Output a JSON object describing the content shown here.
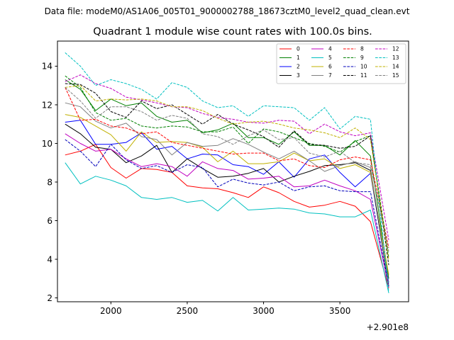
{
  "header": {
    "data_file": "Data file: modeM0/AS1A06_005T01_9000002788_18673cztM0_level2_quad_clean.evt"
  },
  "chart_data": {
    "type": "line",
    "title": "Quadrant 1 module wise count rates with 100.0s bins.",
    "xlabel": "",
    "ylabel": "",
    "x_offset_label": "+2.901e8",
    "xlim": [
      1650,
      3950
    ],
    "ylim": [
      1.8,
      15.3
    ],
    "xticks": [
      2000,
      2500,
      3000,
      3500
    ],
    "yticks": [
      2,
      4,
      6,
      8,
      10,
      12,
      14
    ],
    "legend_position": "top-right",
    "x": [
      1700,
      1800,
      1900,
      2000,
      2100,
      2200,
      2300,
      2400,
      2500,
      2600,
      2700,
      2800,
      2900,
      3000,
      3100,
      3200,
      3300,
      3400,
      3500,
      3600,
      3700,
      3820
    ],
    "series": [
      {
        "name": "0",
        "color": "#ff0000",
        "dash": "solid",
        "values": [
          9.4,
          9.6,
          9.95,
          8.75,
          8.2,
          8.7,
          8.65,
          8.5,
          7.8,
          7.7,
          7.65,
          7.45,
          7.2,
          7.75,
          7.45,
          7.0,
          6.7,
          6.8,
          7.0,
          6.75,
          5.95,
          2.5
        ]
      },
      {
        "name": "1",
        "color": "#008000",
        "dash": "solid",
        "values": [
          13.3,
          12.8,
          11.7,
          12.3,
          11.95,
          12.1,
          11.4,
          11.1,
          11.2,
          10.55,
          10.7,
          11.05,
          10.3,
          10.3,
          9.95,
          10.6,
          9.9,
          9.9,
          9.4,
          10.15,
          9.35,
          3.0
        ]
      },
      {
        "name": "2",
        "color": "#0000ff",
        "dash": "solid",
        "values": [
          11.1,
          11.2,
          9.95,
          9.95,
          10.05,
          10.55,
          9.7,
          9.85,
          9.2,
          9.45,
          9.4,
          8.9,
          8.8,
          8.4,
          9.05,
          8.25,
          9.2,
          9.4,
          8.5,
          7.75,
          8.45,
          2.8
        ]
      },
      {
        "name": "3",
        "color": "#000000",
        "dash": "solid",
        "values": [
          11.0,
          10.5,
          9.8,
          9.7,
          9.0,
          9.35,
          9.9,
          8.5,
          9.2,
          8.7,
          8.25,
          8.3,
          8.45,
          8.7,
          8.0,
          8.3,
          8.55,
          8.85,
          8.9,
          9.0,
          8.6,
          2.6
        ]
      },
      {
        "name": "4",
        "color": "#c000c0",
        "dash": "solid",
        "values": [
          10.5,
          10.0,
          9.6,
          9.7,
          9.2,
          8.8,
          8.95,
          8.8,
          8.3,
          9.05,
          8.7,
          8.6,
          8.15,
          8.2,
          8.3,
          7.75,
          7.8,
          8.1,
          7.8,
          7.55,
          7.1,
          2.55
        ]
      },
      {
        "name": "5",
        "color": "#00c0c0",
        "dash": "solid",
        "values": [
          9.0,
          7.9,
          8.3,
          8.1,
          7.8,
          7.2,
          7.1,
          7.2,
          6.95,
          7.05,
          6.5,
          7.2,
          6.55,
          6.6,
          6.65,
          6.6,
          6.4,
          6.35,
          6.2,
          6.2,
          6.55,
          2.25
        ]
      },
      {
        "name": "6",
        "color": "#c0b000",
        "dash": "solid",
        "values": [
          11.5,
          11.35,
          10.9,
          10.45,
          9.6,
          10.6,
          10.05,
          10.1,
          10.05,
          9.8,
          9.05,
          9.6,
          8.95,
          8.95,
          9.05,
          9.5,
          9.1,
          9.2,
          8.7,
          8.9,
          8.5,
          3.2
        ]
      },
      {
        "name": "7",
        "color": "#808080",
        "dash": "solid",
        "values": [
          12.1,
          11.9,
          11.15,
          10.8,
          11.05,
          10.35,
          10.2,
          9.4,
          10.05,
          9.85,
          9.9,
          10.25,
          9.95,
          9.55,
          9.2,
          9.6,
          9.1,
          8.55,
          8.85,
          9.05,
          8.75,
          2.7
        ]
      },
      {
        "name": "8",
        "color": "#ff0000",
        "dash": "dashed",
        "values": [
          12.9,
          11.2,
          11.25,
          10.9,
          10.8,
          10.5,
          10.6,
          10.05,
          9.9,
          9.75,
          9.6,
          9.45,
          9.5,
          9.5,
          9.1,
          9.2,
          8.85,
          8.75,
          9.15,
          9.3,
          9.15,
          4.6
        ]
      },
      {
        "name": "9",
        "color": "#008000",
        "dash": "dashed",
        "values": [
          13.5,
          12.9,
          11.6,
          11.2,
          11.3,
          10.9,
          10.8,
          10.9,
          10.85,
          10.6,
          10.6,
          10.85,
          10.0,
          10.75,
          10.6,
          10.3,
          10.0,
          9.85,
          9.55,
          10.1,
          10.4,
          4.1
        ]
      },
      {
        "name": "10",
        "color": "#0000bb",
        "dash": "dashed",
        "values": [
          10.2,
          9.6,
          8.8,
          9.95,
          9.15,
          8.7,
          8.85,
          8.5,
          8.9,
          8.75,
          7.75,
          8.15,
          7.95,
          7.85,
          8.0,
          7.55,
          7.75,
          7.8,
          7.55,
          7.5,
          7.5,
          2.6
        ]
      },
      {
        "name": "11",
        "color": "#000000",
        "dash": "dashed",
        "values": [
          13.1,
          13.05,
          12.6,
          11.65,
          11.35,
          12.2,
          11.8,
          12.0,
          11.5,
          11.0,
          11.5,
          11.0,
          10.7,
          10.35,
          9.8,
          10.65,
          9.95,
          9.9,
          9.75,
          9.85,
          10.4,
          3.7
        ]
      },
      {
        "name": "12",
        "color": "#c000c0",
        "dash": "dashed",
        "values": [
          13.2,
          13.55,
          13.1,
          12.85,
          12.4,
          12.25,
          12.1,
          11.9,
          11.85,
          11.55,
          11.35,
          11.25,
          11.1,
          11.05,
          11.2,
          11.15,
          10.5,
          11.0,
          10.6,
          10.4,
          10.55,
          5.0
        ]
      },
      {
        "name": "13",
        "color": "#00c0c0",
        "dash": "dashed",
        "values": [
          14.7,
          14.0,
          13.0,
          13.3,
          13.1,
          12.8,
          12.3,
          13.15,
          12.9,
          12.2,
          11.85,
          11.95,
          11.4,
          11.95,
          11.9,
          11.85,
          11.2,
          11.85,
          10.75,
          11.4,
          11.25,
          2.3
        ]
      },
      {
        "name": "14",
        "color": "#c0b000",
        "dash": "dashed",
        "values": [
          12.9,
          13.0,
          12.2,
          12.3,
          12.25,
          12.3,
          12.2,
          11.9,
          11.9,
          11.7,
          11.3,
          11.0,
          11.1,
          11.15,
          11.0,
          10.8,
          10.7,
          10.55,
          10.3,
          10.8,
          10.2,
          4.0
        ]
      },
      {
        "name": "15",
        "color": "#808080",
        "dash": "dashed",
        "values": [
          12.9,
          12.2,
          11.3,
          11.9,
          11.9,
          11.65,
          11.2,
          11.45,
          11.3,
          10.5,
          10.35,
          9.95,
          10.4,
          10.7,
          10.2,
          10.3,
          9.5,
          9.3,
          9.6,
          9.0,
          8.9,
          4.4
        ]
      }
    ]
  }
}
